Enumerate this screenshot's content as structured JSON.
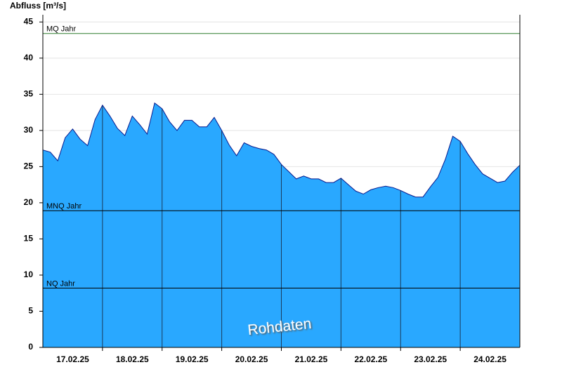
{
  "chart_data": {
    "type": "area",
    "y_label": "Abfluss [m³/s]",
    "watermark": "Rohdaten",
    "color": "#29a8ff",
    "line_color": "#0a1a8c",
    "xlim": [
      0,
      8
    ],
    "ylim": [
      0,
      46
    ],
    "yticks": [
      0,
      5,
      10,
      15,
      20,
      25,
      30,
      35,
      40,
      45
    ],
    "xticks": [
      {
        "value": 0.5,
        "label": "17.02.25"
      },
      {
        "value": 1.5,
        "label": "18.02.25"
      },
      {
        "value": 2.5,
        "label": "19.02.25"
      },
      {
        "value": 3.5,
        "label": "20.02.25"
      },
      {
        "value": 4.5,
        "label": "21.02.25"
      },
      {
        "value": 5.5,
        "label": "22.02.25"
      },
      {
        "value": 6.5,
        "label": "23.02.25"
      },
      {
        "value": 7.5,
        "label": "24.02.25"
      }
    ],
    "grid": true,
    "x": [
      0,
      0.125,
      0.25,
      0.375,
      0.5,
      0.625,
      0.75,
      0.875,
      1,
      1.125,
      1.25,
      1.375,
      1.5,
      1.625,
      1.75,
      1.875,
      2,
      2.125,
      2.25,
      2.375,
      2.5,
      2.625,
      2.75,
      2.875,
      3,
      3.125,
      3.25,
      3.375,
      3.5,
      3.625,
      3.75,
      3.875,
      4,
      4.125,
      4.25,
      4.375,
      4.5,
      4.625,
      4.75,
      4.875,
      5,
      5.125,
      5.25,
      5.375,
      5.5,
      5.625,
      5.75,
      5.875,
      6,
      6.125,
      6.25,
      6.375,
      6.5,
      6.625,
      6.75,
      6.875,
      7,
      7.125,
      7.25,
      7.375,
      7.5,
      7.625,
      7.75,
      7.875,
      8
    ],
    "values": [
      27.3,
      27.0,
      25.8,
      29.0,
      30.2,
      28.8,
      27.9,
      31.5,
      33.5,
      32.0,
      30.3,
      29.3,
      32.0,
      30.8,
      29.5,
      33.8,
      33.0,
      31.2,
      30.0,
      31.4,
      31.4,
      30.5,
      30.5,
      31.8,
      30.0,
      28.0,
      26.5,
      28.3,
      27.8,
      27.5,
      27.3,
      26.7,
      25.3,
      24.3,
      23.3,
      23.7,
      23.3,
      23.3,
      22.8,
      22.8,
      23.4,
      22.5,
      21.6,
      21.2,
      21.8,
      22.1,
      22.3,
      22.1,
      21.7,
      21.2,
      20.8,
      20.8,
      22.2,
      23.5,
      26.0,
      29.2,
      28.5,
      26.8,
      25.3,
      24.0,
      23.4,
      22.8,
      23.0,
      24.2,
      25.2
    ],
    "reference_lines": [
      {
        "label": "MQ Jahr",
        "value": 43.4,
        "color": "#2e7d2e"
      },
      {
        "label": "MNQ Jahr",
        "value": 18.9,
        "color": "#000000"
      },
      {
        "label": "NQ Jahr",
        "value": 8.2,
        "color": "#000000"
      }
    ]
  }
}
